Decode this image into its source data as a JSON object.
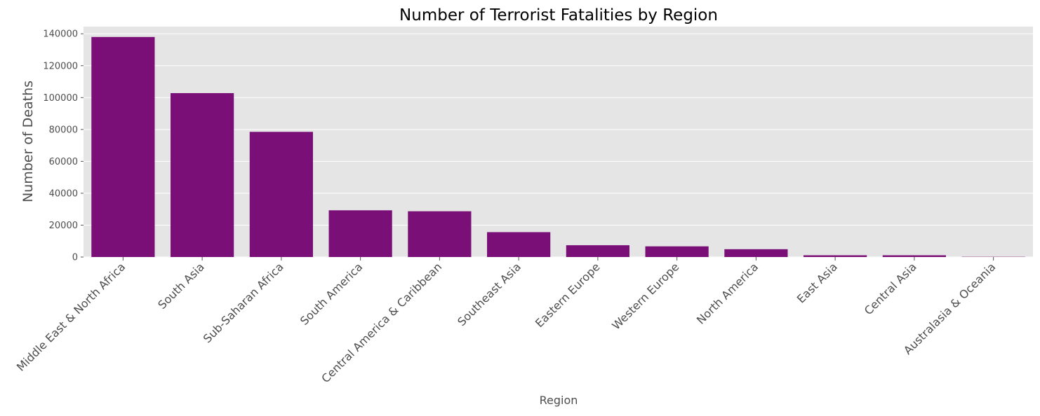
{
  "chart_data": {
    "type": "bar",
    "title": "Number of Terrorist Fatalities by Region",
    "xlabel": "Region",
    "ylabel": "Number of Deaths",
    "categories": [
      "Middle East & North Africa",
      "South Asia",
      "Sub-Saharan Africa",
      "South America",
      "Central America & Caribbean",
      "Southeast Asia",
      "Eastern Europe",
      "Western Europe",
      "North America",
      "East Asia",
      "Central Asia",
      "Australasia & Oceania"
    ],
    "values": [
      138000,
      102800,
      78500,
      29300,
      28700,
      15600,
      7400,
      6700,
      4900,
      1100,
      1100,
      150
    ],
    "ylim": [
      0,
      144500
    ],
    "yticks": [
      0,
      20000,
      40000,
      60000,
      80000,
      100000,
      120000,
      140000
    ],
    "ytick_labels": [
      "0",
      "20000",
      "40000",
      "60000",
      "80000",
      "100000",
      "120000",
      "140000"
    ],
    "grid": true,
    "colors": {
      "bar": "#7a0f78",
      "plot_background": "#e5e5e5",
      "grid": "#ffffff",
      "tick": "#555555"
    }
  }
}
